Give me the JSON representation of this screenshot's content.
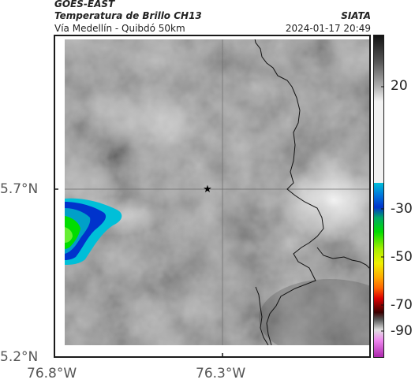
{
  "header": {
    "satellite": "GOES-EAST",
    "product": "Temperatura de Brillo CH13",
    "region": "Vía Medellín - Quibdó 50km",
    "agency": "SIATA",
    "datetime": "2024-01-17 20:49"
  },
  "axes": {
    "lat_labels": [
      "5.7°N",
      "5.2°N"
    ],
    "lon_labels": [
      "76.8°W",
      "76.3°W"
    ]
  },
  "colorbar": {
    "labels": [
      "20",
      "-30",
      "-50",
      "-70",
      "-90"
    ],
    "colors": {
      "cyan": "#00bfd8",
      "blue": "#0033cc",
      "green": "#00dd00",
      "yellow": "#f0f000",
      "orange": "#ff6600",
      "red": "#dd0000",
      "dark": "#3a0000",
      "magenta": "#cc33cc"
    }
  },
  "marker": {
    "symbol": "★"
  },
  "colors": {
    "background": "#808080",
    "border": "#1a1a1a"
  }
}
